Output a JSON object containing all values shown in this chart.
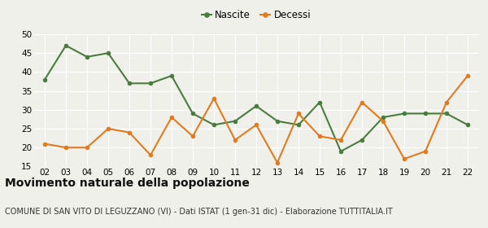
{
  "years": [
    "02",
    "03",
    "04",
    "05",
    "06",
    "07",
    "08",
    "09",
    "10",
    "11",
    "12",
    "13",
    "14",
    "15",
    "16",
    "17",
    "18",
    "19",
    "20",
    "21",
    "22"
  ],
  "nascite": [
    38,
    47,
    44,
    45,
    37,
    37,
    39,
    29,
    26,
    27,
    31,
    27,
    26,
    32,
    19,
    22,
    28,
    29,
    29,
    29,
    26
  ],
  "decessi": [
    21,
    20,
    20,
    25,
    24,
    18,
    28,
    23,
    33,
    22,
    26,
    16,
    29,
    23,
    22,
    32,
    27,
    17,
    19,
    32,
    39
  ],
  "nascite_color": "#4a7c3f",
  "decessi_color": "#e07b20",
  "bg_color": "#f0f0eb",
  "grid_color": "#ffffff",
  "ylim": [
    15,
    50
  ],
  "yticks": [
    15,
    20,
    25,
    30,
    35,
    40,
    45,
    50
  ],
  "title": "Movimento naturale della popolazione",
  "subtitle": "COMUNE DI SAN VITO DI LEGUZZANO (VI) - Dati ISTAT (1 gen-31 dic) - Elaborazione TUTTITALIA.IT",
  "legend_nascite": "Nascite",
  "legend_decessi": "Decessi",
  "title_fontsize": 10,
  "subtitle_fontsize": 7,
  "axis_fontsize": 7.5,
  "legend_fontsize": 8.5,
  "marker_size": 4,
  "line_width": 1.5
}
